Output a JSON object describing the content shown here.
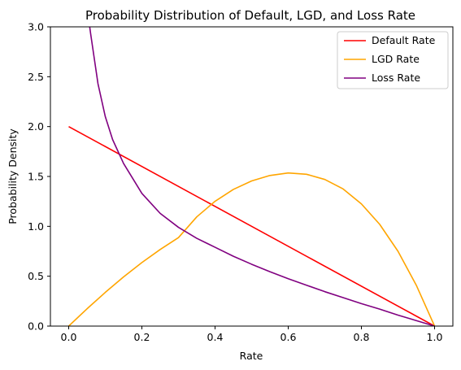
{
  "chart_data": {
    "type": "line",
    "title": "Probability Distribution of Default, LGD, and Loss Rate",
    "xlabel": "Rate",
    "ylabel": "Probability Density",
    "xlim": [
      -0.05,
      1.05
    ],
    "ylim": [
      0,
      3.0
    ],
    "xticks": [
      0.0,
      0.2,
      0.4,
      0.6,
      0.8,
      1.0
    ],
    "xtick_labels": [
      "0.0",
      "0.2",
      "0.4",
      "0.6",
      "0.8",
      "1.0"
    ],
    "yticks": [
      0.0,
      0.5,
      1.0,
      1.5,
      2.0,
      2.5,
      3.0
    ],
    "ytick_labels": [
      "0.0",
      "0.5",
      "1.0",
      "1.5",
      "2.0",
      "2.5",
      "3.0"
    ],
    "grid": false,
    "legend_position": "top-right",
    "series": [
      {
        "name": "Default Rate",
        "color": "#ff0000",
        "x": [
          0.0,
          1.0
        ],
        "y": [
          2.0,
          0.0
        ]
      },
      {
        "name": "LGD Rate",
        "color": "#ffa500",
        "x": [
          0.0,
          0.05,
          0.1,
          0.15,
          0.2,
          0.25,
          0.3,
          0.35,
          0.4,
          0.45,
          0.5,
          0.55,
          0.6,
          0.65,
          0.7,
          0.75,
          0.8,
          0.85,
          0.9,
          0.95,
          1.0
        ],
        "y": [
          0.0,
          0.173,
          0.338,
          0.493,
          0.637,
          0.768,
          0.887,
          1.095,
          1.251,
          1.37,
          1.455,
          1.51,
          1.535,
          1.522,
          1.47,
          1.375,
          1.225,
          1.02,
          0.75,
          0.41,
          0.0
        ]
      },
      {
        "name": "Loss Rate",
        "color": "#800080",
        "x": [
          0.05,
          0.06,
          0.08,
          0.1,
          0.12,
          0.15,
          0.2,
          0.25,
          0.3,
          0.35,
          0.4,
          0.45,
          0.5,
          0.55,
          0.6,
          0.65,
          0.7,
          0.75,
          0.8,
          0.85,
          0.9,
          0.95,
          1.0
        ],
        "y": [
          3.2,
          2.93,
          2.43,
          2.1,
          1.87,
          1.63,
          1.33,
          1.13,
          0.99,
          0.88,
          0.79,
          0.7,
          0.62,
          0.545,
          0.475,
          0.41,
          0.345,
          0.285,
          0.225,
          0.17,
          0.11,
          0.055,
          0.0
        ]
      }
    ]
  }
}
